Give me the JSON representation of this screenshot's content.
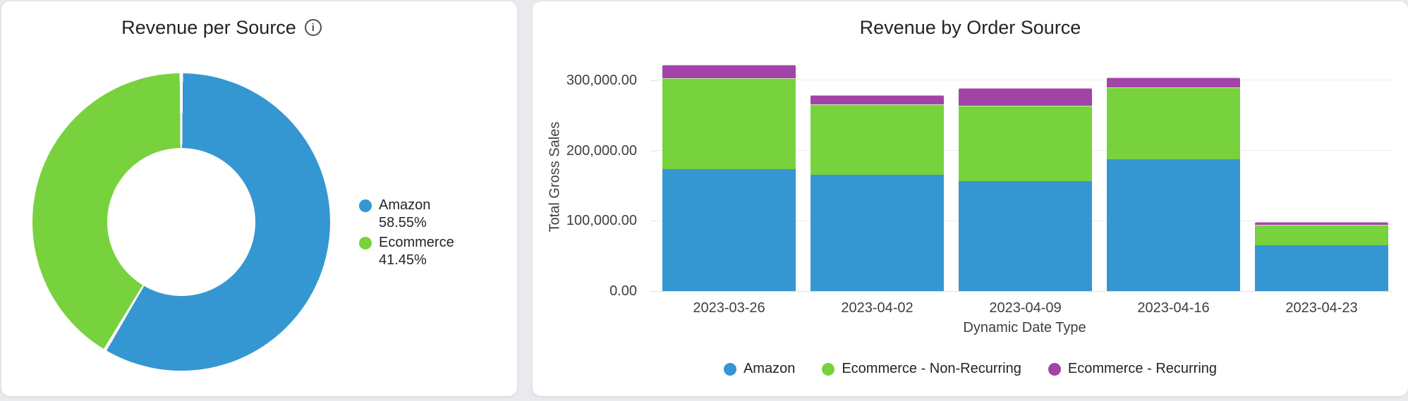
{
  "page_background": "#e8eaed",
  "left_card": {
    "title": "Revenue per Source",
    "info_icon_glyph": "i",
    "legend": [
      {
        "label": "Amazon 58.55%",
        "color": "#3597d2"
      },
      {
        "label": "Ecommerce 41.45%",
        "color": "#78d23d"
      }
    ]
  },
  "right_card": {
    "title": "Revenue by Order Source"
  },
  "chart_data": [
    {
      "type": "pie",
      "title": "Revenue per Source",
      "donut": true,
      "labels": [
        "Amazon",
        "Ecommerce"
      ],
      "values": [
        58.55,
        41.45
      ],
      "unit": "%",
      "colors": [
        "#3597d2",
        "#78d23d"
      ],
      "legend_position": "right",
      "start_angle": "top",
      "direction": "clockwise"
    },
    {
      "type": "bar",
      "stacked": true,
      "title": "Revenue by Order Source",
      "categories": [
        "2023-03-26",
        "2023-04-02",
        "2023-04-09",
        "2023-04-16",
        "2023-04-23"
      ],
      "series": [
        {
          "name": "Amazon",
          "color": "#3597d2",
          "values": [
            174000,
            165500,
            156500,
            188000,
            65000
          ]
        },
        {
          "name": "Ecommerce - Non-Recurring",
          "color": "#78d23d",
          "values": [
            129000,
            100500,
            107000,
            102000,
            29000
          ]
        },
        {
          "name": "Ecommerce - Recurring",
          "color": "#a243a7",
          "values": [
            19000,
            12500,
            25000,
            13500,
            4000
          ]
        }
      ],
      "totals": [
        322000,
        278500,
        288500,
        303500,
        98000
      ],
      "xlabel": "Dynamic Date Type",
      "ylabel": "Total Gross Sales",
      "yticks": [
        "0.00",
        "100,000.00",
        "200,000.00",
        "300,000.00"
      ],
      "ytick_values": [
        0,
        100000,
        200000,
        300000
      ],
      "ylim": [
        0,
        346000
      ],
      "grid": true,
      "legend_position": "bottom"
    }
  ]
}
